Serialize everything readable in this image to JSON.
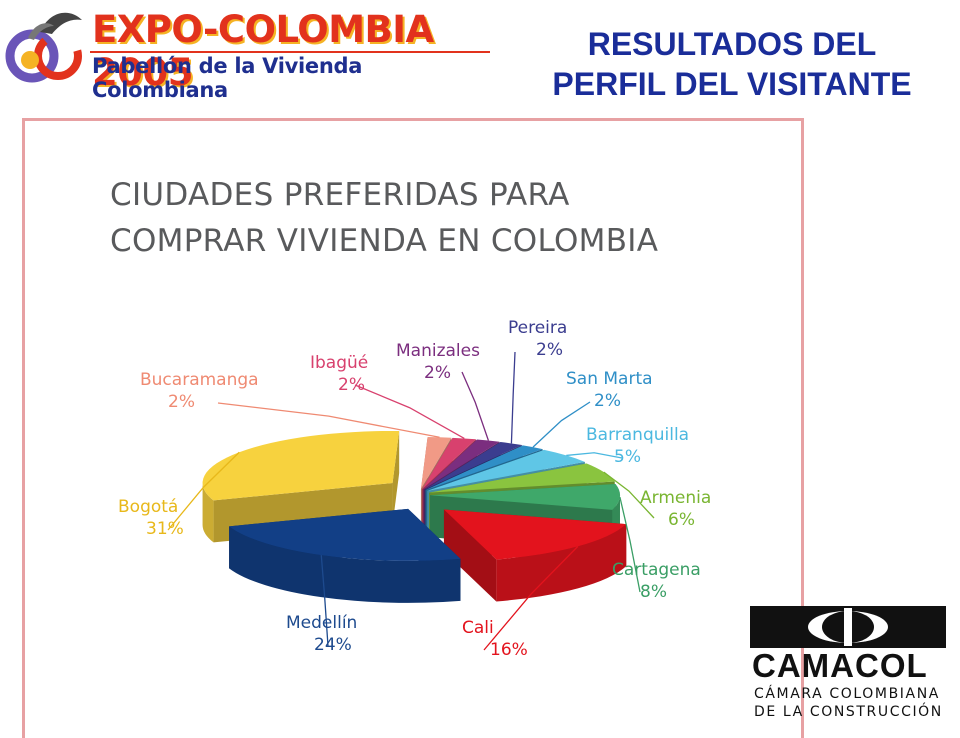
{
  "header": {
    "logo_title": "EXPO-COLOMBIA 2005",
    "logo_subtitle": "Pabellón de la Vivienda Colombiana",
    "title_line1": "RESULTADOS DEL",
    "title_line2": "PERFIL DEL VISITANTE"
  },
  "chart_data": {
    "type": "pie",
    "title_line1": "CIUDADES PREFERIDAS PARA",
    "title_line2": "COMPRAR VIVIENDA EN COLOMBIA",
    "unit": "%",
    "slices": [
      {
        "label": "Bucaramanga",
        "value_label": "2%",
        "value": 2,
        "color": "#f19a86"
      },
      {
        "label": "Ibagüé",
        "value_label": "2%",
        "value": 2,
        "color": "#d8416e"
      },
      {
        "label": "Manizales",
        "value_label": "2%",
        "value": 2,
        "color": "#7b2e7f"
      },
      {
        "label": "Pereira",
        "value_label": "2%",
        "value": 2,
        "color": "#3b3d8f"
      },
      {
        "label": "San Marta",
        "value_label": "2%",
        "value": 2,
        "color": "#2f8fc7"
      },
      {
        "label": "Barranquilla",
        "value_label": "5%",
        "value": 5,
        "color": "#5fc6e6"
      },
      {
        "label": "Armenia",
        "value_label": "6%",
        "value": 6,
        "color": "#8ac43f"
      },
      {
        "label": "Cartagena",
        "value_label": "8%",
        "value": 8,
        "color": "#3fa86a"
      },
      {
        "label": "Cali",
        "value_label": "16%",
        "value": 16,
        "color": "#e3131d"
      },
      {
        "label": "Medellín",
        "value_label": "24%",
        "value": 24,
        "color": "#123f86"
      },
      {
        "label": "Bogotá",
        "value_label": "31%",
        "value": 31,
        "color": "#f7d23e"
      }
    ],
    "label_colors": {
      "Bucaramanga": "#ef8a72",
      "Ibagüé": "#d8416e",
      "Manizales": "#7b2e7f",
      "Pereira": "#3b3d8f",
      "San Marta": "#2f8fc7",
      "Barranquilla": "#4bb8e0",
      "Armenia": "#79b531",
      "Cartagena": "#3a9e65",
      "Cali": "#e3131d",
      "Medellín": "#1d4a8e",
      "Bogotá": "#e8b81a"
    }
  },
  "footer_logo": {
    "name": "CAMACOL",
    "line1": "CÁMARA COLOMBIANA",
    "line2": "DE LA CONSTRUCCIÓN"
  },
  "colors": {
    "header_title": "#1a2d99",
    "frame_border": "#e7a1a3",
    "chart_title": "#595a5c"
  }
}
